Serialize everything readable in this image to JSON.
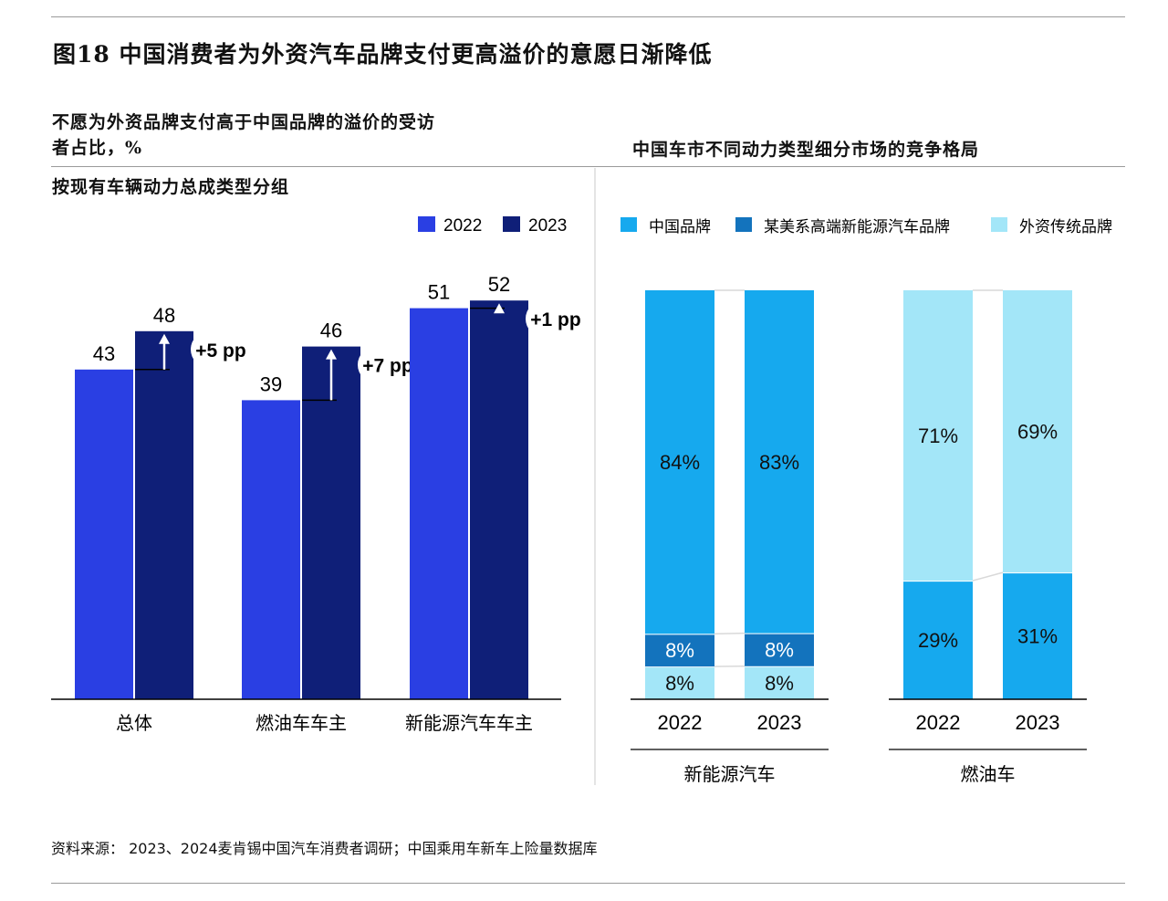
{
  "figure": {
    "title": "图18 中国消费者为外资汽车品牌支付更高溢价的意愿日渐降低",
    "source": "资料来源： 2023、2024麦肯锡中国汽车消费者调研；中国乘用车新车上险量数据库"
  },
  "left_panel": {
    "title_line1": "不愿为外资品牌支付高于中国品牌的溢价的受访",
    "title_line2": "者占比，%",
    "subtitle": "按现有车辆动力总成类型分组"
  },
  "right_panel": {
    "title": "中国车市不同动力类型细分市场的竞争格局"
  },
  "colors": {
    "bar_2022": "#2a3fe3",
    "bar_2023": "#0f1f78",
    "chinese_brand": "#16a9ee",
    "us_premium_nev": "#1373bd",
    "foreign_traditional": "#a3e6f8"
  },
  "chart_data": [
    {
      "type": "bar",
      "categories": [
        "总体",
        "燃油车车主",
        "新能源汽车车主"
      ],
      "series": [
        {
          "name": "2022",
          "values": [
            43,
            39,
            51
          ]
        },
        {
          "name": "2023",
          "values": [
            48,
            46,
            52
          ]
        }
      ],
      "annotations": [
        "+5 pp",
        "+7 pp",
        "+1 pp"
      ],
      "ylim": [
        0,
        70
      ],
      "legend": "top-right",
      "grid": false
    },
    {
      "type": "bar",
      "stacked": true,
      "percent": true,
      "legend": "top",
      "grid": false,
      "legend_labels": [
        "中国品牌",
        "某美系高端新能源汽车品牌",
        "外资传统品牌"
      ],
      "groups": [
        {
          "name": "新能源汽车",
          "bars": [
            {
              "x": "2022",
              "segments": [
                {
                  "series": "外资传统品牌",
                  "value": 8,
                  "label": "8%"
                },
                {
                  "series": "某美系高端新能源汽车品牌",
                  "value": 8,
                  "label": "8%"
                },
                {
                  "series": "中国品牌",
                  "value": 84,
                  "label": "84%"
                }
              ]
            },
            {
              "x": "2023",
              "segments": [
                {
                  "series": "外资传统品牌",
                  "value": 8,
                  "label": "8%"
                },
                {
                  "series": "某美系高端新能源汽车品牌",
                  "value": 8,
                  "label": "8%"
                },
                {
                  "series": "中国品牌",
                  "value": 83,
                  "label": "83%"
                }
              ]
            }
          ]
        },
        {
          "name": "燃油车",
          "bars": [
            {
              "x": "2022",
              "segments": [
                {
                  "series": "中国品牌",
                  "value": 29,
                  "label": "29%"
                },
                {
                  "series": "外资传统品牌",
                  "value": 71,
                  "label": "71%"
                }
              ]
            },
            {
              "x": "2023",
              "segments": [
                {
                  "series": "中国品牌",
                  "value": 31,
                  "label": "31%"
                },
                {
                  "series": "外资传统品牌",
                  "value": 69,
                  "label": "69%"
                }
              ]
            }
          ]
        }
      ]
    }
  ]
}
